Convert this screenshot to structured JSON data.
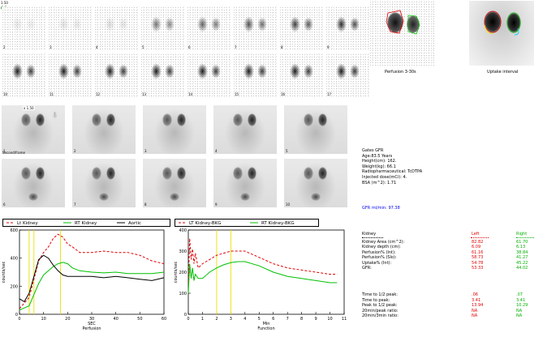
{
  "header": {
    "scale_label": "1.50",
    "corner_code": "01",
    "seconds_label": "2 sec/frame",
    "dyn_label": "Second/frame"
  },
  "perfusion_frames": [
    "2",
    "3",
    "4",
    "5",
    "6",
    "7",
    "8",
    "9",
    "10",
    "11",
    "12",
    "13",
    "14",
    "15",
    "16",
    "17"
  ],
  "dynamic_frames": [
    "1",
    "2",
    "3",
    "4",
    "5",
    "6",
    "7",
    "8",
    "9",
    "10"
  ],
  "dynamic_scale": "x 1.50",
  "summary_images": {
    "perfusion_caption": "Perfusion 3-30s",
    "uptake_caption": "Uptake interval"
  },
  "patient": {
    "title": "Gates GFR",
    "lines": [
      "Age:83.5 Years",
      "Height(cm): 162.",
      "Weight(kg): 66.1",
      "Radiopharmaceutical:  TcDTPA",
      "Injected dose(mCi): 4.",
      "BSA (m^2): 1.71"
    ],
    "gfr": "GFR ml/min:  97.38"
  },
  "results": {
    "headers": [
      "Kidney",
      "Left",
      "Right"
    ],
    "rows": [
      [
        "Kidney Area (cm^2):",
        "82.82",
        "61.70"
      ],
      [
        "Kidney depth (cm):",
        "6.09",
        "6.13"
      ],
      [
        "Perfusion% (Int):",
        "61.16",
        "38.84"
      ],
      [
        "Perfusion% (Slo):",
        "58.73",
        "41.27"
      ],
      [
        "Uptake% (Int):",
        "54.78",
        "45.22"
      ],
      [
        "GFR:",
        "53.33",
        "44.02"
      ]
    ],
    "rows2": [
      [
        "Time to 1/2 peak:",
        ".06",
        ".07"
      ],
      [
        "Time to peak:",
        "3.41",
        "3.41"
      ],
      [
        "Peak to 1/2 peak:",
        "13.94",
        "10.29"
      ],
      [
        "20min/peak ratio:",
        "NA",
        "NA"
      ],
      [
        "20min/3min ratio:",
        "NA",
        "NA"
      ]
    ]
  },
  "colors": {
    "left": "#e00000",
    "right": "#00c000",
    "aortic": "#000000",
    "marker": "#e8e000"
  },
  "chart_data": [
    {
      "type": "line",
      "title": "",
      "xlabel": "SEC",
      "xlabel2": "Perfusion",
      "ylabel": "counts/sec",
      "legend": [
        "Lt Kidney",
        "RT Kidney",
        "Aortic"
      ],
      "xlim": [
        0,
        60
      ],
      "ylim": [
        0,
        600
      ],
      "xticks": [
        "0",
        "10",
        "20",
        "30",
        "40",
        "50",
        "60"
      ],
      "yticks": [
        "0",
        "200",
        "400",
        "600"
      ],
      "markers_x": [
        4,
        6,
        17
      ],
      "series": [
        {
          "name": "Lt Kidney",
          "x": [
            0,
            4,
            6,
            8,
            10,
            12,
            14,
            16,
            18,
            20,
            22,
            25,
            30,
            35,
            40,
            45,
            50,
            55,
            60
          ],
          "y": [
            40,
            120,
            250,
            380,
            440,
            480,
            540,
            570,
            550,
            500,
            480,
            440,
            440,
            450,
            440,
            440,
            420,
            380,
            360
          ]
        },
        {
          "name": "RT Kidney",
          "x": [
            0,
            4,
            6,
            8,
            10,
            12,
            14,
            16,
            18,
            20,
            22,
            25,
            30,
            35,
            40,
            45,
            50,
            55,
            60
          ],
          "y": [
            30,
            60,
            140,
            220,
            280,
            310,
            340,
            360,
            370,
            360,
            330,
            310,
            300,
            295,
            300,
            290,
            290,
            290,
            300
          ]
        },
        {
          "name": "Aortic",
          "x": [
            0,
            2,
            4,
            6,
            8,
            10,
            12,
            14,
            16,
            18,
            20,
            25,
            30,
            35,
            40,
            45,
            50,
            55,
            60
          ],
          "y": [
            110,
            90,
            150,
            270,
            390,
            420,
            400,
            350,
            310,
            280,
            270,
            270,
            270,
            260,
            270,
            260,
            250,
            240,
            260
          ]
        }
      ]
    },
    {
      "type": "line",
      "title": "",
      "xlabel": "Min",
      "xlabel2": "Function",
      "ylabel": "counts/sec",
      "legend": [
        "LT Kidney-BKG",
        "RT Kidney-BKG"
      ],
      "xlim": [
        0,
        11
      ],
      "ylim": [
        0,
        400
      ],
      "xticks": [
        "0",
        "1",
        "2",
        "3",
        "4",
        "5",
        "6",
        "7",
        "8",
        "9",
        "10",
        "11"
      ],
      "yticks": [
        "0",
        "100",
        "200",
        "300",
        "400"
      ],
      "markers_x": [
        2,
        3
      ],
      "series": [
        {
          "name": "LT Kidney-BKG",
          "x": [
            0,
            0.1,
            0.2,
            0.3,
            0.4,
            0.5,
            0.7,
            1,
            1.5,
            2,
            2.5,
            3,
            3.5,
            4,
            5,
            6,
            7,
            8,
            9,
            10,
            10.5
          ],
          "y": [
            150,
            360,
            260,
            310,
            240,
            290,
            220,
            240,
            260,
            280,
            290,
            300,
            300,
            300,
            270,
            240,
            220,
            210,
            200,
            190,
            190
          ]
        },
        {
          "name": "RT Kidney-BKG",
          "x": [
            0,
            0.1,
            0.2,
            0.3,
            0.4,
            0.5,
            0.7,
            1,
            1.5,
            2,
            2.5,
            3,
            3.5,
            4,
            5,
            6,
            7,
            8,
            9,
            10,
            10.5
          ],
          "y": [
            100,
            240,
            170,
            220,
            160,
            190,
            170,
            170,
            200,
            220,
            235,
            245,
            250,
            250,
            230,
            200,
            180,
            170,
            160,
            150,
            150
          ]
        }
      ]
    }
  ]
}
